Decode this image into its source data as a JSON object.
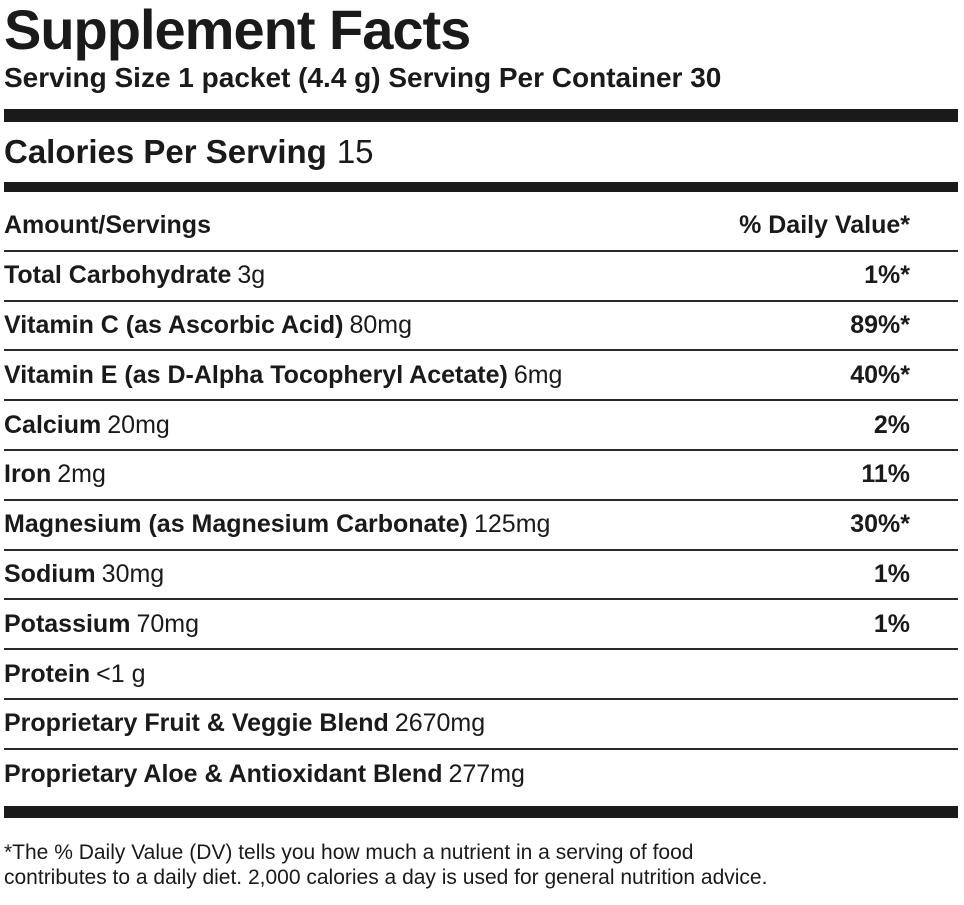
{
  "label": {
    "title": "Supplement Facts",
    "serving_line": "Serving Size 1 packet (4.4 g) Serving Per Container 30",
    "calories_label": "Calories Per Serving",
    "calories_value": "15",
    "header_amount": "Amount/Servings",
    "header_dv": "% Daily Value*",
    "rows": [
      {
        "name": "Total Carbohydrate",
        "amount": "3g",
        "dv": "1%*"
      },
      {
        "name": "Vitamin C (as Ascorbic Acid)",
        "amount": "80mg",
        "dv": "89%*"
      },
      {
        "name": "Vitamin E (as D-Alpha Tocopheryl Acetate)",
        "amount": "6mg",
        "dv": "40%*"
      },
      {
        "name": "Calcium",
        "amount": "20mg",
        "dv": "2%"
      },
      {
        "name": "Iron",
        "amount": "2mg",
        "dv": "11%"
      },
      {
        "name": "Magnesium (as Magnesium Carbonate)",
        "amount": "125mg",
        "dv": "30%*"
      },
      {
        "name": "Sodium",
        "amount": "30mg",
        "dv": "1%"
      },
      {
        "name": "Potassium",
        "amount": "70mg",
        "dv": "1%"
      },
      {
        "name": "Protein",
        "amount": "<1 g",
        "dv": ""
      },
      {
        "name": "Proprietary Fruit & Veggie Blend",
        "amount": "2670mg",
        "dv": ""
      },
      {
        "name": "Proprietary Aloe & Antioxidant Blend",
        "amount": "277mg",
        "dv": ""
      }
    ],
    "footnote_line1": "*The % Daily Value (DV) tells you how much a nutrient in a serving of food",
    "footnote_line2": "contributes to a daily diet. 2,000 calories a day is used for general nutrition advice."
  }
}
